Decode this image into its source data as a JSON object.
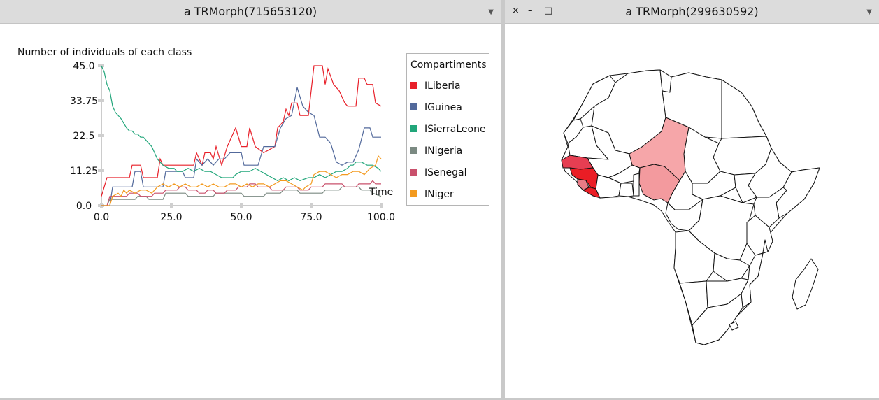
{
  "left_window": {
    "title": "a TRMorph(715653120)",
    "menu_icon": "chevron-down-icon"
  },
  "right_window": {
    "title": "a TRMorph(299630592)",
    "menu_icon": "chevron-down-icon",
    "buttons": {
      "close": "×",
      "minimize": "–",
      "maximize": "□"
    }
  },
  "chart_data": {
    "type": "line",
    "title": "Number of individuals of each class",
    "xlabel": "Time",
    "ylabel": "",
    "xlim": [
      0,
      100
    ],
    "ylim": [
      0,
      45
    ],
    "x_ticks": [
      "0.0",
      "25.0",
      "50.0",
      "75.0",
      "100.0"
    ],
    "y_ticks": [
      "0.0",
      "11.25",
      "22.5",
      "33.75",
      "45.0"
    ],
    "legend_title": "Compartiments",
    "legend_position": "right",
    "series": [
      {
        "name": "ILiberia",
        "color": "#e8202a",
        "points": [
          [
            0,
            3
          ],
          [
            2,
            9
          ],
          [
            10,
            9
          ],
          [
            11,
            13
          ],
          [
            14,
            13
          ],
          [
            15,
            9
          ],
          [
            18,
            9
          ],
          [
            20,
            9
          ],
          [
            21,
            15
          ],
          [
            22,
            13
          ],
          [
            28,
            13
          ],
          [
            33,
            13
          ],
          [
            34,
            17
          ],
          [
            36,
            13
          ],
          [
            37,
            17
          ],
          [
            39,
            17
          ],
          [
            40,
            15
          ],
          [
            41,
            19
          ],
          [
            43,
            13
          ],
          [
            45,
            19
          ],
          [
            48,
            25
          ],
          [
            50,
            19
          ],
          [
            52,
            19
          ],
          [
            53,
            25
          ],
          [
            55,
            19
          ],
          [
            58,
            17
          ],
          [
            62,
            19
          ],
          [
            63,
            25
          ],
          [
            65,
            27
          ],
          [
            66,
            31
          ],
          [
            67,
            29
          ],
          [
            68,
            33
          ],
          [
            70,
            33
          ],
          [
            71,
            29
          ],
          [
            74,
            29
          ],
          [
            76,
            45
          ],
          [
            79,
            45
          ],
          [
            80,
            39
          ],
          [
            81,
            44
          ],
          [
            83,
            39
          ],
          [
            85,
            37
          ],
          [
            87,
            33
          ],
          [
            88,
            32
          ],
          [
            91,
            32
          ],
          [
            92,
            41
          ],
          [
            94,
            41
          ],
          [
            95,
            39
          ],
          [
            97,
            39
          ],
          [
            98,
            33
          ],
          [
            100,
            32
          ]
        ]
      },
      {
        "name": "IGuinea",
        "color": "#52699b",
        "points": [
          [
            0,
            0
          ],
          [
            3,
            0
          ],
          [
            4,
            6
          ],
          [
            11,
            6
          ],
          [
            12,
            11
          ],
          [
            14,
            11
          ],
          [
            15,
            6
          ],
          [
            22,
            6
          ],
          [
            23,
            11
          ],
          [
            26,
            11
          ],
          [
            29,
            11
          ],
          [
            30,
            9
          ],
          [
            33,
            9
          ],
          [
            34,
            15
          ],
          [
            36,
            13
          ],
          [
            38,
            15
          ],
          [
            40,
            13
          ],
          [
            42,
            15
          ],
          [
            44,
            15
          ],
          [
            46,
            17
          ],
          [
            48,
            17
          ],
          [
            50,
            17
          ],
          [
            51,
            13
          ],
          [
            56,
            13
          ],
          [
            58,
            19
          ],
          [
            62,
            19
          ],
          [
            64,
            25
          ],
          [
            66,
            28
          ],
          [
            68,
            29
          ],
          [
            70,
            38
          ],
          [
            72,
            32
          ],
          [
            74,
            30
          ],
          [
            76,
            29
          ],
          [
            78,
            22
          ],
          [
            80,
            22
          ],
          [
            82,
            20
          ],
          [
            84,
            14
          ],
          [
            86,
            13
          ],
          [
            88,
            14
          ],
          [
            90,
            14
          ],
          [
            92,
            18
          ],
          [
            94,
            25
          ],
          [
            96,
            25
          ],
          [
            97,
            22
          ],
          [
            100,
            22
          ]
        ]
      },
      {
        "name": "ISierraLeone",
        "color": "#21a67a",
        "points": [
          [
            0,
            45
          ],
          [
            1,
            43
          ],
          [
            2,
            39
          ],
          [
            3,
            37
          ],
          [
            4,
            32
          ],
          [
            5,
            30
          ],
          [
            6,
            29
          ],
          [
            7,
            28
          ],
          [
            9,
            25
          ],
          [
            10,
            24
          ],
          [
            11,
            24
          ],
          [
            12,
            23
          ],
          [
            13,
            23
          ],
          [
            14,
            22
          ],
          [
            15,
            22
          ],
          [
            16,
            21
          ],
          [
            18,
            19
          ],
          [
            19,
            17
          ],
          [
            20,
            15
          ],
          [
            21,
            14
          ],
          [
            22,
            13
          ],
          [
            24,
            12
          ],
          [
            26,
            12
          ],
          [
            27,
            11
          ],
          [
            29,
            11
          ],
          [
            31,
            12
          ],
          [
            33,
            11
          ],
          [
            35,
            12
          ],
          [
            37,
            11
          ],
          [
            39,
            11
          ],
          [
            41,
            10
          ],
          [
            43,
            9
          ],
          [
            47,
            9
          ],
          [
            48,
            10
          ],
          [
            50,
            11
          ],
          [
            53,
            11
          ],
          [
            55,
            12
          ],
          [
            57,
            11
          ],
          [
            59,
            10
          ],
          [
            61,
            9
          ],
          [
            63,
            8
          ],
          [
            65,
            9
          ],
          [
            67,
            8
          ],
          [
            69,
            9
          ],
          [
            71,
            8
          ],
          [
            74,
            9
          ],
          [
            76,
            9
          ],
          [
            78,
            10
          ],
          [
            80,
            9
          ],
          [
            82,
            10
          ],
          [
            84,
            11
          ],
          [
            86,
            11
          ],
          [
            88,
            12
          ],
          [
            89,
            13
          ],
          [
            90,
            13
          ],
          [
            91,
            14
          ],
          [
            93,
            14
          ],
          [
            95,
            13
          ],
          [
            97,
            13
          ],
          [
            99,
            12
          ],
          [
            100,
            11
          ]
        ]
      },
      {
        "name": "INigeria",
        "color": "#7b8a82",
        "points": [
          [
            0,
            0
          ],
          [
            2,
            0
          ],
          [
            3,
            2
          ],
          [
            12,
            2
          ],
          [
            13,
            3
          ],
          [
            16,
            3
          ],
          [
            17,
            2
          ],
          [
            22,
            2
          ],
          [
            23,
            4
          ],
          [
            30,
            4
          ],
          [
            31,
            3
          ],
          [
            40,
            3
          ],
          [
            41,
            4
          ],
          [
            50,
            4
          ],
          [
            51,
            3
          ],
          [
            58,
            3
          ],
          [
            59,
            4
          ],
          [
            64,
            4
          ],
          [
            65,
            5
          ],
          [
            70,
            5
          ],
          [
            71,
            4
          ],
          [
            79,
            4
          ],
          [
            80,
            5
          ],
          [
            85,
            5
          ],
          [
            86,
            6
          ],
          [
            92,
            6
          ],
          [
            93,
            5
          ],
          [
            96,
            5
          ],
          [
            97,
            4
          ],
          [
            100,
            3
          ]
        ]
      },
      {
        "name": "ISenegal",
        "color": "#c9506c",
        "points": [
          [
            0,
            0
          ],
          [
            2,
            0
          ],
          [
            3,
            3
          ],
          [
            9,
            3
          ],
          [
            10,
            4
          ],
          [
            13,
            4
          ],
          [
            14,
            3
          ],
          [
            18,
            3
          ],
          [
            19,
            4
          ],
          [
            22,
            4
          ],
          [
            23,
            5
          ],
          [
            27,
            5
          ],
          [
            28,
            6
          ],
          [
            30,
            6
          ],
          [
            31,
            5
          ],
          [
            34,
            5
          ],
          [
            35,
            4
          ],
          [
            37,
            4
          ],
          [
            38,
            5
          ],
          [
            40,
            5
          ],
          [
            41,
            4
          ],
          [
            44,
            4
          ],
          [
            45,
            5
          ],
          [
            48,
            5
          ],
          [
            49,
            6
          ],
          [
            52,
            6
          ],
          [
            53,
            7
          ],
          [
            55,
            7
          ],
          [
            56,
            6
          ],
          [
            60,
            6
          ],
          [
            61,
            5
          ],
          [
            65,
            5
          ],
          [
            66,
            6
          ],
          [
            70,
            6
          ],
          [
            71,
            5
          ],
          [
            74,
            5
          ],
          [
            75,
            6
          ],
          [
            79,
            6
          ],
          [
            80,
            7
          ],
          [
            86,
            7
          ],
          [
            87,
            6
          ],
          [
            91,
            6
          ],
          [
            92,
            7
          ],
          [
            96,
            7
          ],
          [
            97,
            8
          ],
          [
            98,
            7
          ],
          [
            100,
            7
          ]
        ]
      },
      {
        "name": "INiger",
        "color": "#f39a1f",
        "points": [
          [
            0,
            0
          ],
          [
            3,
            0
          ],
          [
            4,
            3
          ],
          [
            6,
            4
          ],
          [
            7,
            3
          ],
          [
            8,
            5
          ],
          [
            9,
            4
          ],
          [
            10,
            5
          ],
          [
            12,
            4
          ],
          [
            14,
            5
          ],
          [
            16,
            5
          ],
          [
            18,
            4
          ],
          [
            20,
            6
          ],
          [
            22,
            7
          ],
          [
            24,
            6
          ],
          [
            26,
            7
          ],
          [
            28,
            6
          ],
          [
            30,
            7
          ],
          [
            32,
            6
          ],
          [
            34,
            6
          ],
          [
            36,
            7
          ],
          [
            38,
            6
          ],
          [
            40,
            7
          ],
          [
            42,
            6
          ],
          [
            44,
            6
          ],
          [
            46,
            7
          ],
          [
            48,
            7
          ],
          [
            50,
            6
          ],
          [
            52,
            7
          ],
          [
            54,
            6
          ],
          [
            56,
            7
          ],
          [
            58,
            7
          ],
          [
            60,
            6
          ],
          [
            62,
            7
          ],
          [
            64,
            8
          ],
          [
            66,
            8
          ],
          [
            68,
            7
          ],
          [
            70,
            6
          ],
          [
            72,
            5
          ],
          [
            73,
            6
          ],
          [
            75,
            7
          ],
          [
            76,
            10
          ],
          [
            78,
            11
          ],
          [
            80,
            11
          ],
          [
            82,
            10
          ],
          [
            84,
            9
          ],
          [
            86,
            10
          ],
          [
            88,
            10
          ],
          [
            90,
            11
          ],
          [
            92,
            11
          ],
          [
            94,
            10
          ],
          [
            96,
            12
          ],
          [
            98,
            13
          ],
          [
            99,
            16
          ],
          [
            100,
            15
          ]
        ]
      }
    ]
  },
  "map": {
    "outline_color": "#111111",
    "highlighted": [
      {
        "country": "Senegal",
        "level": "high",
        "color": "#e63e52"
      },
      {
        "country": "Guinea",
        "level": "high",
        "color": "#ea1d25"
      },
      {
        "country": "Sierra Leone",
        "level": "medium",
        "color": "#e77b86"
      },
      {
        "country": "Liberia",
        "level": "high",
        "color": "#ea1d25"
      },
      {
        "country": "Nigeria",
        "level": "low",
        "color": "#f39a9e"
      },
      {
        "country": "Niger",
        "level": "low",
        "color": "#f6a6a9"
      }
    ]
  }
}
